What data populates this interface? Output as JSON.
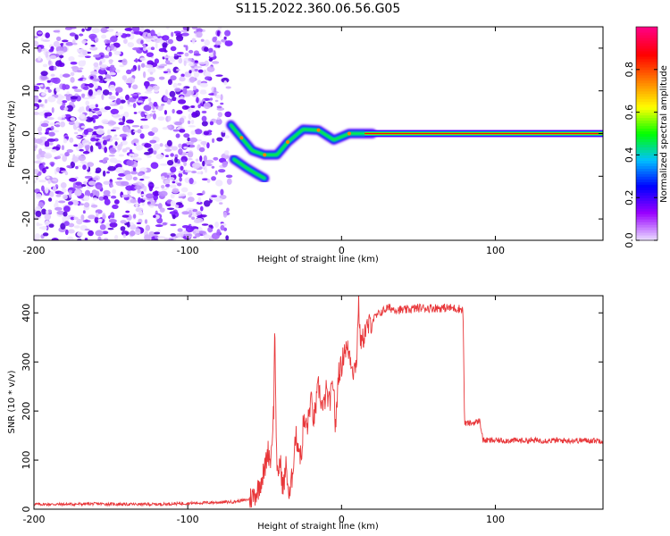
{
  "chart_data": [
    {
      "type": "heatmap",
      "title": "S115.2022.360.06.56.G05",
      "xlabel": "Height of straight line (km)",
      "ylabel": "Frequency (Hz)",
      "xlim": [
        -200,
        170
      ],
      "ylim": [
        -25,
        25
      ],
      "xticks": [
        "-200",
        "-100",
        "0",
        "100"
      ],
      "yticks": [
        "20",
        "10",
        "0",
        "-10",
        "-20"
      ],
      "colorbar": {
        "label": "Normalized spectral amplitude",
        "range": [
          0,
          1
        ],
        "ticks": [
          "0.0",
          "0.2",
          "0.4",
          "0.6",
          "0.8"
        ],
        "colormap": [
          "#e8d8ff",
          "#9900ff",
          "#0000ff",
          "#00c0ff",
          "#00ff00",
          "#ffff00",
          "#ff8000",
          "#ff0000",
          "#ff0080"
        ]
      },
      "features": {
        "noise_region": {
          "x": [
            -200,
            -70
          ],
          "y": [
            -25,
            25
          ]
        },
        "signal_track": [
          {
            "x": -72,
            "y": 2
          },
          {
            "x": -65,
            "y": -1
          },
          {
            "x": -58,
            "y": -4
          },
          {
            "x": -50,
            "y": -5
          },
          {
            "x": -42,
            "y": -5
          },
          {
            "x": -35,
            "y": -2
          },
          {
            "x": -25,
            "y": 1
          },
          {
            "x": -15,
            "y": 0.8
          },
          {
            "x": -5,
            "y": -1.5
          },
          {
            "x": 5,
            "y": 0
          },
          {
            "x": 20,
            "y": 0
          }
        ],
        "secondary_branch": [
          {
            "x": -70,
            "y": -6
          },
          {
            "x": -62,
            "y": -8
          },
          {
            "x": -55,
            "y": -9.5
          },
          {
            "x": -50,
            "y": -10.5
          }
        ],
        "steady_line": {
          "x": [
            15,
            170
          ],
          "y": 0
        }
      }
    },
    {
      "type": "line",
      "title": "",
      "xlabel": "Height of straight line (km)",
      "ylabel": "SNR (10 * v/v)",
      "xlim": [
        -200,
        170
      ],
      "ylim": [
        0,
        435
      ],
      "xticks": [
        "-200",
        "-100",
        "0",
        "100"
      ],
      "yticks": [
        "0",
        "100",
        "200",
        "300",
        "400"
      ],
      "color": "#e8373a",
      "series": [
        {
          "x": [
            -200,
            -180,
            -160,
            -140,
            -120,
            -100,
            -80,
            -70,
            -60,
            -55,
            -50,
            -48,
            -46,
            -44,
            -43.5,
            -42,
            -40,
            -38,
            -36,
            -34,
            -32,
            -30,
            -28,
            -26,
            -25,
            -22,
            -20,
            -18,
            -15,
            -12,
            -10,
            -8,
            -5,
            -4,
            -2,
            0,
            2,
            5,
            8,
            10,
            11,
            12,
            12.5,
            13,
            15,
            20,
            25,
            30,
            40,
            50,
            60,
            70,
            78,
            79,
            80,
            85,
            90,
            92,
            95,
            100,
            110,
            120,
            130,
            140,
            150,
            160,
            170
          ],
          "y": [
            10,
            10,
            11,
            10,
            10,
            12,
            14,
            15,
            20,
            35,
            80,
            120,
            100,
            210,
            380,
            60,
            100,
            40,
            90,
            20,
            70,
            150,
            130,
            100,
            175,
            170,
            225,
            180,
            250,
            200,
            240,
            215,
            260,
            155,
            280,
            290,
            330,
            320,
            280,
            310,
            430,
            350,
            355,
            335,
            360,
            385,
            400,
            410,
            405,
            410,
            410,
            410,
            408,
            405,
            175,
            175,
            180,
            140,
            140,
            140,
            140,
            140,
            140,
            140,
            140,
            140,
            140
          ]
        }
      ]
    }
  ]
}
